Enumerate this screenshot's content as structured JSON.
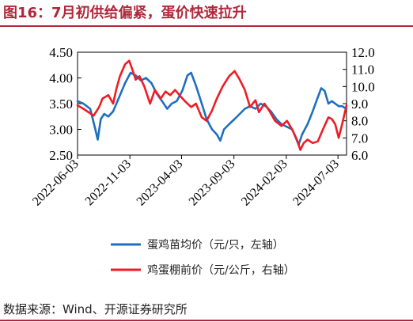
{
  "header": {
    "title": "图16：7月初供给偏紧，蛋价快速拉升"
  },
  "footer": {
    "source": "数据来源：Wind、开源证券研究所"
  },
  "colors": {
    "accent": "#b0283c",
    "series_blue": "#1f6fbf",
    "series_red": "#ee1c25"
  },
  "chart_data": {
    "type": "line",
    "title": "",
    "xlabel": "",
    "ylabel_left": "",
    "ylabel_right": "",
    "x_start": "2022-06-03",
    "x_end": "2024-07-28",
    "x_ticks": [
      "2022-06-03",
      "2022-11-03",
      "2023-04-03",
      "2023-09-03",
      "2024-02-03",
      "2024-07-03"
    ],
    "y_left": {
      "lim": [
        2.5,
        4.5
      ],
      "ticks": [
        "2.50",
        "3.00",
        "3.50",
        "4.00",
        "4.50"
      ]
    },
    "y_right": {
      "lim": [
        6.0,
        12.0
      ],
      "ticks": [
        "6.0",
        "7.0",
        "8.0",
        "9.0",
        "10.0",
        "11.0",
        "12.0"
      ]
    },
    "grid": false,
    "legend_position": "bottom",
    "series": [
      {
        "name": "蛋鸡苗均价（元/只，左轴）",
        "axis": "left",
        "color": "#1f6fbf",
        "points": [
          [
            "2022-06-03",
            3.55
          ],
          [
            "2022-06-20",
            3.5
          ],
          [
            "2022-07-10",
            3.4
          ],
          [
            "2022-07-25",
            3.0
          ],
          [
            "2022-08-01",
            2.8
          ],
          [
            "2022-08-10",
            3.2
          ],
          [
            "2022-08-20",
            3.3
          ],
          [
            "2022-09-01",
            3.25
          ],
          [
            "2022-09-15",
            3.35
          ],
          [
            "2022-10-01",
            3.6
          ],
          [
            "2022-10-20",
            3.9
          ],
          [
            "2022-11-05",
            4.1
          ],
          [
            "2022-11-20",
            4.05
          ],
          [
            "2022-12-05",
            3.95
          ],
          [
            "2022-12-20",
            4.0
          ],
          [
            "2023-01-05",
            3.9
          ],
          [
            "2023-01-20",
            3.7
          ],
          [
            "2023-02-05",
            3.55
          ],
          [
            "2023-02-20",
            3.4
          ],
          [
            "2023-03-05",
            3.5
          ],
          [
            "2023-03-20",
            3.55
          ],
          [
            "2023-04-05",
            3.75
          ],
          [
            "2023-04-20",
            4.05
          ],
          [
            "2023-05-01",
            4.1
          ],
          [
            "2023-05-15",
            3.85
          ],
          [
            "2023-06-01",
            3.5
          ],
          [
            "2023-06-15",
            3.2
          ],
          [
            "2023-07-01",
            3.0
          ],
          [
            "2023-07-15",
            2.9
          ],
          [
            "2023-07-25",
            2.78
          ],
          [
            "2023-08-05",
            3.0
          ],
          [
            "2023-08-20",
            3.1
          ],
          [
            "2023-09-05",
            3.2
          ],
          [
            "2023-09-20",
            3.3
          ],
          [
            "2023-10-05",
            3.4
          ],
          [
            "2023-10-20",
            3.45
          ],
          [
            "2023-11-05",
            3.4
          ],
          [
            "2023-11-20",
            3.5
          ],
          [
            "2023-12-05",
            3.45
          ],
          [
            "2023-12-20",
            3.35
          ],
          [
            "2024-01-05",
            3.2
          ],
          [
            "2024-01-20",
            3.1
          ],
          [
            "2024-02-05",
            3.05
          ],
          [
            "2024-02-20",
            3.0
          ],
          [
            "2024-03-01",
            2.85
          ],
          [
            "2024-03-10",
            2.7
          ],
          [
            "2024-03-20",
            2.9
          ],
          [
            "2024-04-05",
            3.1
          ],
          [
            "2024-04-20",
            3.35
          ],
          [
            "2024-05-01",
            3.55
          ],
          [
            "2024-05-15",
            3.8
          ],
          [
            "2024-05-25",
            3.75
          ],
          [
            "2024-06-05",
            3.5
          ],
          [
            "2024-06-15",
            3.55
          ],
          [
            "2024-06-25",
            3.5
          ],
          [
            "2024-07-05",
            3.45
          ],
          [
            "2024-07-15",
            3.45
          ],
          [
            "2024-07-28",
            3.4
          ]
        ]
      },
      {
        "name": "鸡蛋棚前价（元/公斤，右轴）",
        "axis": "right",
        "color": "#ee1c25",
        "points": [
          [
            "2022-06-03",
            8.9
          ],
          [
            "2022-06-20",
            8.7
          ],
          [
            "2022-07-05",
            8.5
          ],
          [
            "2022-07-20",
            8.3
          ],
          [
            "2022-08-05",
            8.8
          ],
          [
            "2022-08-15",
            9.3
          ],
          [
            "2022-09-01",
            9.5
          ],
          [
            "2022-09-15",
            9.0
          ],
          [
            "2022-09-25",
            9.9
          ],
          [
            "2022-10-05",
            10.6
          ],
          [
            "2022-10-20",
            11.3
          ],
          [
            "2022-11-01",
            11.5
          ],
          [
            "2022-11-10",
            11.0
          ],
          [
            "2022-11-20",
            10.4
          ],
          [
            "2022-12-01",
            10.6
          ],
          [
            "2022-12-15",
            10.0
          ],
          [
            "2023-01-01",
            9.0
          ],
          [
            "2023-01-15",
            9.8
          ],
          [
            "2023-02-01",
            9.3
          ],
          [
            "2023-02-15",
            9.7
          ],
          [
            "2023-03-01",
            9.5
          ],
          [
            "2023-03-15",
            9.8
          ],
          [
            "2023-04-01",
            9.4
          ],
          [
            "2023-04-15",
            9.1
          ],
          [
            "2023-05-01",
            8.8
          ],
          [
            "2023-05-15",
            9.0
          ],
          [
            "2023-06-01",
            8.2
          ],
          [
            "2023-06-15",
            8.0
          ],
          [
            "2023-07-01",
            8.6
          ],
          [
            "2023-07-15",
            9.3
          ],
          [
            "2023-08-01",
            10.0
          ],
          [
            "2023-08-20",
            10.6
          ],
          [
            "2023-09-05",
            10.9
          ],
          [
            "2023-09-20",
            10.4
          ],
          [
            "2023-10-05",
            9.8
          ],
          [
            "2023-10-20",
            8.8
          ],
          [
            "2023-11-05",
            9.2
          ],
          [
            "2023-11-15",
            8.5
          ],
          [
            "2023-12-01",
            9.0
          ],
          [
            "2023-12-15",
            8.6
          ],
          [
            "2024-01-01",
            8.0
          ],
          [
            "2024-01-20",
            7.7
          ],
          [
            "2024-02-05",
            8.0
          ],
          [
            "2024-02-20",
            7.5
          ],
          [
            "2024-03-05",
            6.9
          ],
          [
            "2024-03-15",
            6.3
          ],
          [
            "2024-03-25",
            6.7
          ],
          [
            "2024-04-05",
            6.9
          ],
          [
            "2024-04-20",
            6.7
          ],
          [
            "2024-05-05",
            6.8
          ],
          [
            "2024-05-20",
            7.5
          ],
          [
            "2024-06-05",
            8.2
          ],
          [
            "2024-06-15",
            8.1
          ],
          [
            "2024-06-25",
            7.8
          ],
          [
            "2024-07-05",
            7.0
          ],
          [
            "2024-07-15",
            7.8
          ],
          [
            "2024-07-28",
            8.9
          ]
        ]
      }
    ]
  }
}
